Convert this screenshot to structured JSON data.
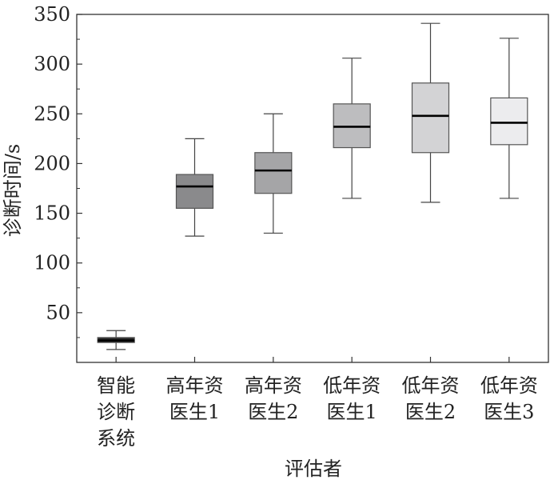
{
  "chart_data": {
    "type": "box",
    "xlabel": "评估者",
    "ylabel": "诊断时间/s",
    "ylim": [
      0,
      350
    ],
    "yticks": [
      50,
      100,
      150,
      200,
      250,
      300,
      350
    ],
    "grid": false,
    "categories": [
      {
        "lines": [
          "智能",
          "诊断",
          "系统"
        ]
      },
      {
        "lines": [
          "高年资",
          "医生1"
        ]
      },
      {
        "lines": [
          "高年资",
          "医生2"
        ]
      },
      {
        "lines": [
          "低年资",
          "医生1"
        ]
      },
      {
        "lines": [
          "低年资",
          "医生2"
        ]
      },
      {
        "lines": [
          "低年资",
          "医生3"
        ]
      }
    ],
    "boxes": [
      {
        "min": 13,
        "q1": 20,
        "median": 22,
        "q3": 25,
        "max": 32,
        "color": "#2a2a2a"
      },
      {
        "min": 127,
        "q1": 155,
        "median": 177,
        "q3": 189,
        "max": 225,
        "color": "#8a8a8c"
      },
      {
        "min": 130,
        "q1": 170,
        "median": 193,
        "q3": 211,
        "max": 250,
        "color": "#a5a5a7"
      },
      {
        "min": 165,
        "q1": 216,
        "median": 237,
        "q3": 260,
        "max": 306,
        "color": "#bdbdbf"
      },
      {
        "min": 161,
        "q1": 211,
        "median": 248,
        "q3": 281,
        "max": 341,
        "color": "#d3d3d5"
      },
      {
        "min": 165,
        "q1": 219,
        "median": 241,
        "q3": 266,
        "max": 326,
        "color": "#ececee"
      }
    ]
  }
}
